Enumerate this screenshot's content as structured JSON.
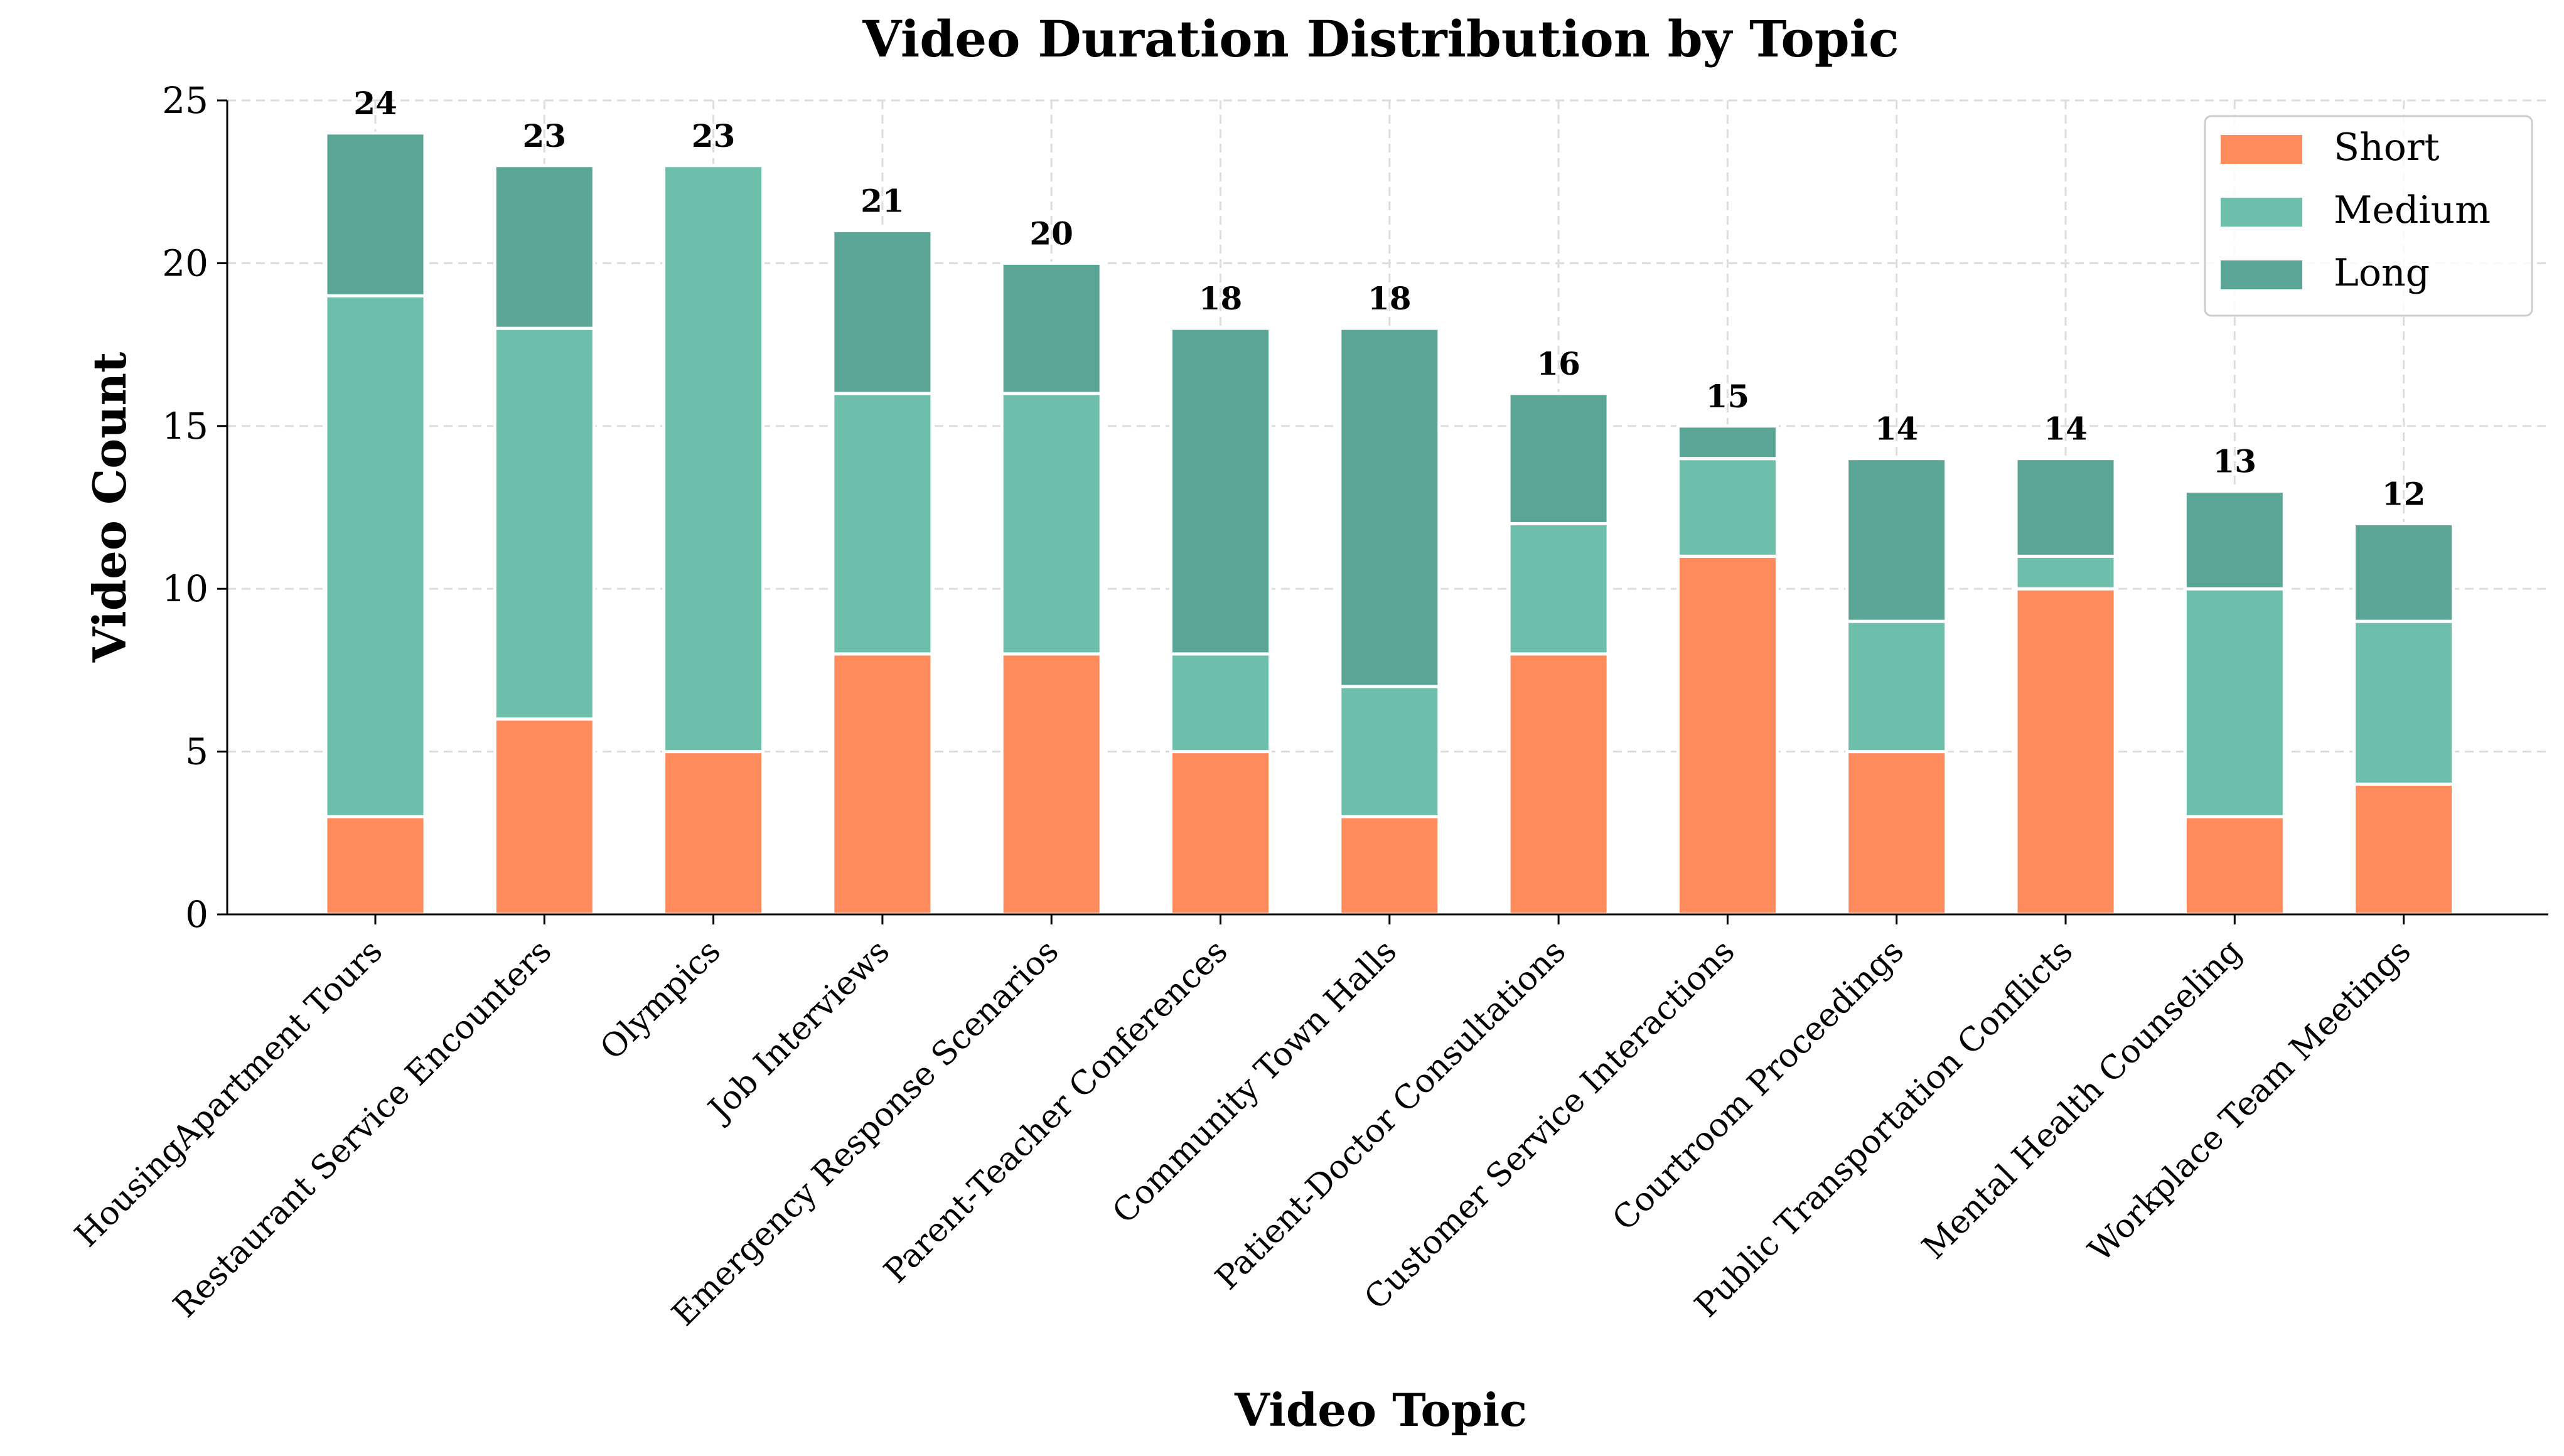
{
  "chart_data": {
    "type": "bar",
    "stacked": true,
    "title": "Video Duration Distribution by Topic",
    "xlabel": "Video Topic",
    "ylabel": "Video Count",
    "ylim": [
      0,
      25
    ],
    "yticks": [
      0,
      5,
      10,
      15,
      20,
      25
    ],
    "grid": true,
    "legend_position": "top-right",
    "categories": [
      "HousingApartment Tours",
      "Restaurant Service Encounters",
      "Olympics",
      "Job Interviews",
      "Emergency Response Scenarios",
      "Parent-Teacher Conferences",
      "Community Town Halls",
      "Patient-Doctor Consultations",
      "Customer Service Interactions",
      "Courtroom Proceedings",
      "Public Transportation Conflicts",
      "Mental Health Counseling",
      "Workplace Team Meetings"
    ],
    "series": [
      {
        "name": "Short",
        "color": "#ff8a5c",
        "values": [
          3,
          6,
          5,
          8,
          8,
          5,
          3,
          8,
          11,
          5,
          10,
          3,
          4
        ]
      },
      {
        "name": "Medium",
        "color": "#6dbfab",
        "values": [
          16,
          12,
          18,
          8,
          8,
          3,
          4,
          4,
          3,
          4,
          1,
          7,
          5
        ]
      },
      {
        "name": "Long",
        "color": "#5aa595",
        "values": [
          5,
          5,
          0,
          5,
          4,
          10,
          11,
          4,
          1,
          5,
          3,
          3,
          3
        ]
      }
    ],
    "totals": [
      24,
      23,
      23,
      21,
      20,
      18,
      18,
      16,
      15,
      14,
      14,
      13,
      12
    ]
  }
}
